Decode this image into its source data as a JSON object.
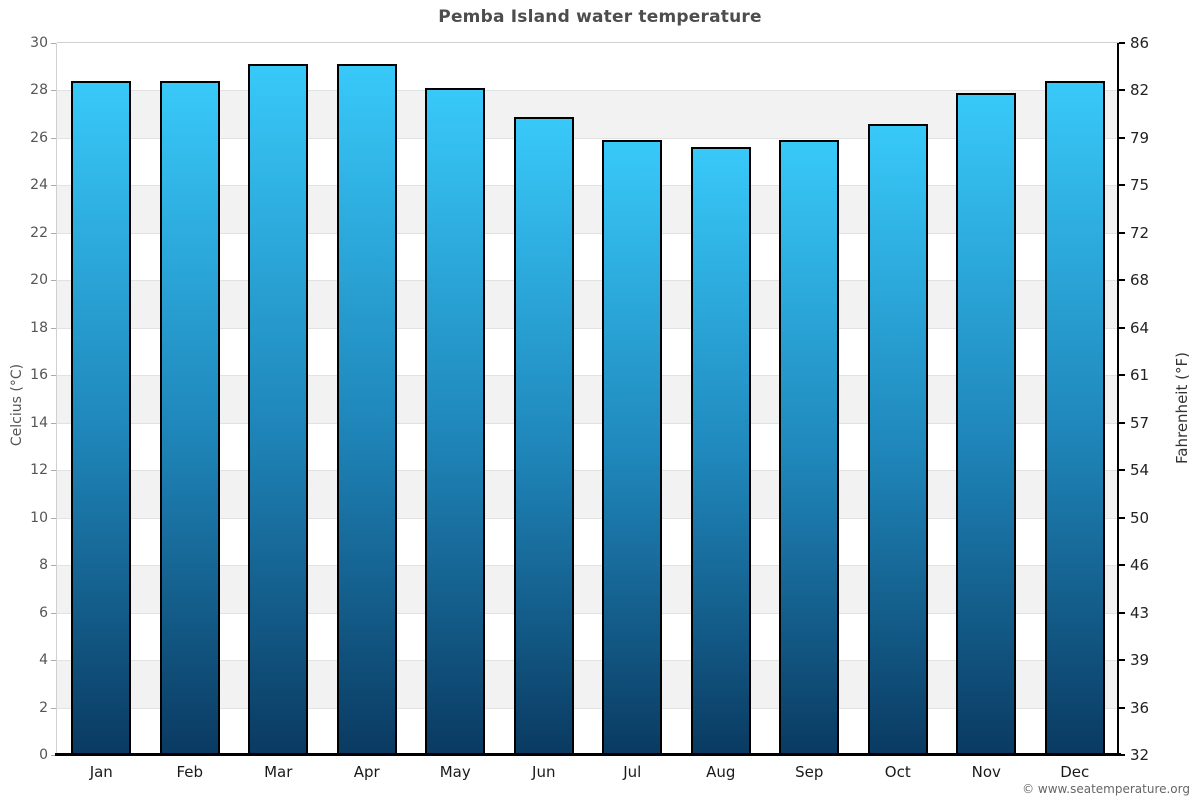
{
  "page": {
    "footer": "© www.seatemperature.org"
  },
  "chart_data": {
    "type": "bar",
    "title": "Pemba Island water temperature",
    "categories": [
      "Jan",
      "Feb",
      "Mar",
      "Apr",
      "May",
      "Jun",
      "Jul",
      "Aug",
      "Sep",
      "Oct",
      "Nov",
      "Dec"
    ],
    "values": [
      28.4,
      28.4,
      29.1,
      29.1,
      28.1,
      26.9,
      25.9,
      25.6,
      25.9,
      26.6,
      27.9,
      28.4
    ],
    "xlabel": "",
    "ylabel_left": "Celcius (°C)",
    "ylabel_right": "Fahrenheit (°F)",
    "ylim": [
      0,
      30
    ],
    "ytick_step": 2,
    "yticks_left": [
      0,
      2,
      4,
      6,
      8,
      10,
      12,
      14,
      16,
      18,
      20,
      22,
      24,
      26,
      28,
      30
    ],
    "yticks_right_labels": [
      "32",
      "36",
      "39",
      "43",
      "46",
      "50",
      "54",
      "57",
      "61",
      "64",
      "68",
      "72",
      "75",
      "79",
      "82",
      "86"
    ],
    "grid": "horizontal alternating bands every 2°C, light gridlines",
    "legend": false,
    "style": {
      "bar_gradient_top": "#38c9f9",
      "bar_gradient_mid": "#1f86ba",
      "bar_gradient_bottom": "#0a3a61",
      "bar_border": "#000000",
      "band_fill": "#f2f2f2",
      "gridline": "#e2e2e2",
      "axis_black": "#000000",
      "axis_light": "#d0d0d0",
      "title_color": "#4d4d4d",
      "tick_label_color": "#555555",
      "month_label_color": "#1a1a1a",
      "footer_color": "#666666"
    }
  }
}
